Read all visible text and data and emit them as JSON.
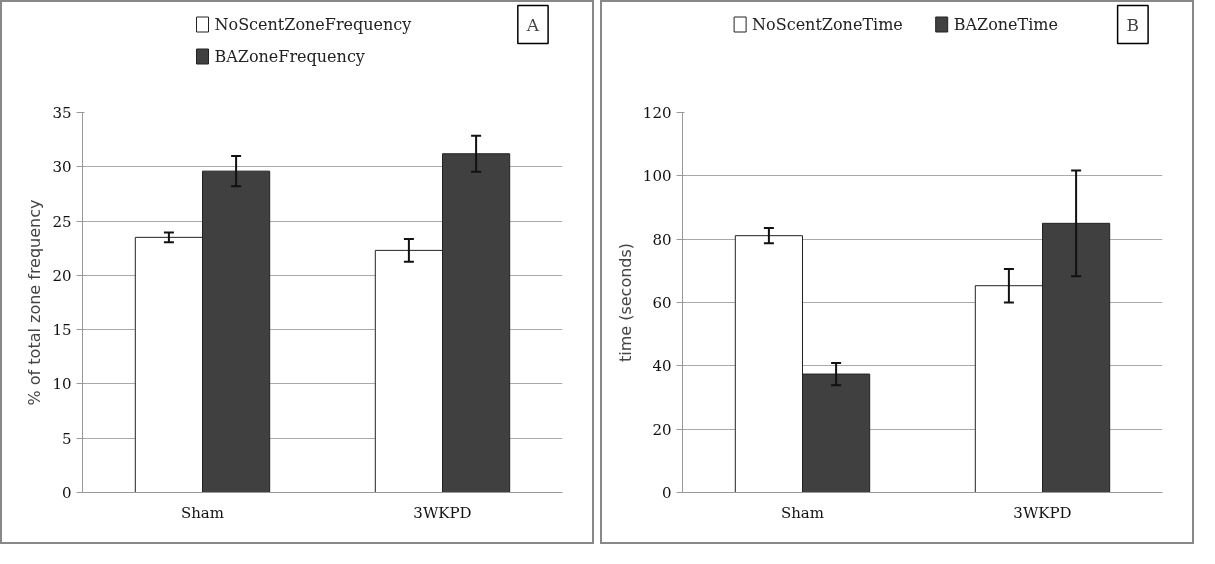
{
  "chart_data": [
    {
      "type": "bar",
      "categories": [
        "Sham",
        "3WKPD"
      ],
      "ylabel": "% of total zone frequency",
      "ylim": [
        0,
        35
      ],
      "yticks": [
        0,
        5,
        10,
        15,
        20,
        25,
        30,
        35
      ],
      "grid": "y",
      "legend": "top",
      "annotations": [
        "A"
      ],
      "series": [
        {
          "name": "NoScentZoneFrequency",
          "color": "#ffffff",
          "values": [
            23.5,
            22.3
          ],
          "errors": [
            0.45,
            1.05
          ]
        },
        {
          "name": "BAZoneFrequency",
          "color": "#404040",
          "values": [
            29.6,
            31.2
          ],
          "errors": [
            1.4,
            1.65
          ]
        }
      ]
    },
    {
      "type": "bar",
      "categories": [
        "Sham",
        "3WKPD"
      ],
      "ylabel": "time (seconds)",
      "ylim": [
        0,
        120
      ],
      "yticks": [
        0,
        20,
        40,
        60,
        80,
        100,
        120
      ],
      "grid": "y",
      "legend": "top",
      "annotations": [
        "B"
      ],
      "series": [
        {
          "name": "NoScentZoneTime",
          "color": "#ffffff",
          "values": [
            81.1,
            65.3
          ],
          "errors": [
            2.4,
            5.3
          ]
        },
        {
          "name": "BAZoneTime",
          "color": "#404040",
          "values": [
            37.4,
            85.0
          ],
          "errors": [
            3.5,
            16.7
          ]
        }
      ]
    }
  ]
}
